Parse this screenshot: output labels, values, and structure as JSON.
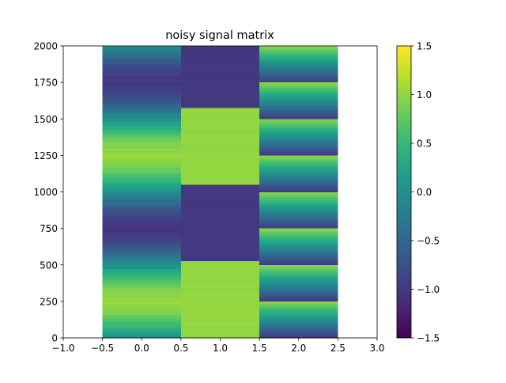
{
  "chart_data": {
    "type": "heatmap",
    "title": "noisy signal matrix",
    "xlabel": "",
    "ylabel": "",
    "xlim": [
      -1.0,
      3.0
    ],
    "ylim": [
      0,
      2000
    ],
    "x_ticks": [
      "−1.0",
      "−0.5",
      "0.0",
      "0.5",
      "1.0",
      "1.5",
      "2.0",
      "2.5",
      "3.0"
    ],
    "y_ticks": [
      "0",
      "250",
      "500",
      "750",
      "1000",
      "1250",
      "1500",
      "1750",
      "2000"
    ],
    "colorbar": {
      "colormap": "viridis",
      "vmin": -1.5,
      "vmax": 1.5,
      "ticks": [
        "−1.5",
        "−1.0",
        "−0.5",
        "0.0",
        "0.5",
        "1.0",
        "1.5"
      ]
    },
    "columns": [
      {
        "x_center": 0,
        "signal": "sine",
        "period": 1000,
        "amplitude": 1.0,
        "noise": 0.08
      },
      {
        "x_center": 1,
        "signal": "square",
        "period": 525,
        "amplitude": 1.0,
        "noise": 0.04
      },
      {
        "x_center": 2,
        "signal": "sawtooth",
        "period": 250,
        "amplitude": 1.0,
        "noise": 0.04
      }
    ],
    "n_rows": 2000,
    "grid": false
  }
}
